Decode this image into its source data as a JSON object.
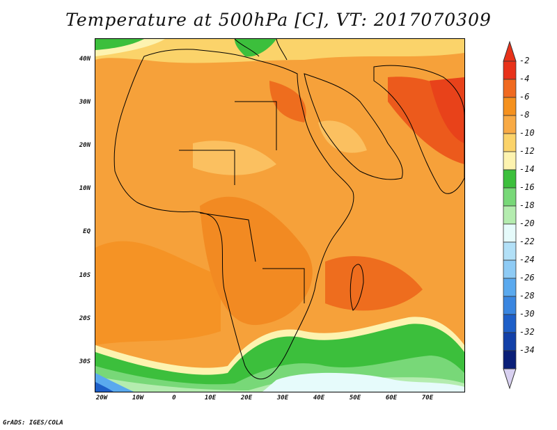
{
  "title": "Temperature at 500hPa [C], VT: 2017070309",
  "credit": "GrADS: IGES/COLA",
  "lat_labels": [
    "40N",
    "30N",
    "20N",
    "10N",
    "EQ",
    "10S",
    "20S",
    "30S"
  ],
  "lon_labels": [
    "20W",
    "10W",
    "0",
    "10E",
    "20E",
    "30E",
    "40E",
    "50E",
    "60E",
    "70E"
  ],
  "colorbar": {
    "ticks": [
      "-2",
      "-4",
      "-6",
      "-8",
      "-10",
      "-12",
      "-14",
      "-16",
      "-18",
      "-20",
      "-22",
      "-24",
      "-26",
      "-28",
      "-30",
      "-32",
      "-34"
    ],
    "colors": [
      "#e8321a",
      "#f06a20",
      "#f5911e",
      "#f8aa45",
      "#fbd36a",
      "#fdf3b0",
      "#3cbf3c",
      "#78d878",
      "#b4ecaf",
      "#e6fbfb",
      "#b2e0f7",
      "#8ecbf5",
      "#5aa9ee",
      "#3a86e0",
      "#1e5fc8",
      "#1240a8",
      "#0a1f78"
    ],
    "over_color": "#e8321a",
    "under_color": "#d8d0f0"
  }
}
